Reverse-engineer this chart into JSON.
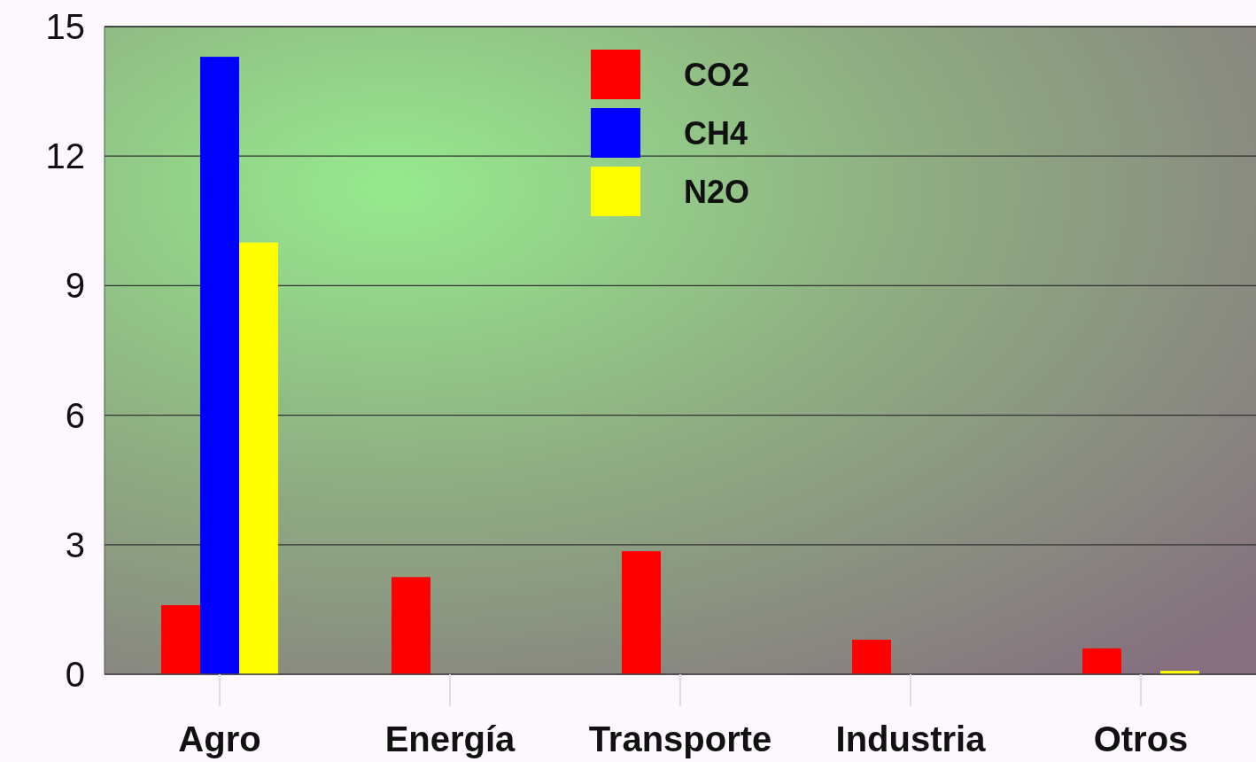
{
  "chart_data": {
    "type": "bar",
    "categories": [
      "Agro",
      "Energía",
      "Transporte",
      "Industria",
      "Otros"
    ],
    "series": [
      {
        "name": "CO2",
        "color": "#ff0000",
        "values": [
          1.6,
          2.25,
          2.85,
          0.8,
          0.6
        ]
      },
      {
        "name": "CH4",
        "color": "#0000ff",
        "values": [
          14.3,
          0,
          0,
          0,
          0
        ]
      },
      {
        "name": "N2O",
        "color": "#ffff00",
        "values": [
          10.0,
          0,
          0,
          0,
          0.08
        ]
      }
    ],
    "ylim": [
      0,
      15
    ],
    "yticks": [
      0,
      3,
      6,
      9,
      12,
      15
    ],
    "grid": "y",
    "legend": "top"
  }
}
